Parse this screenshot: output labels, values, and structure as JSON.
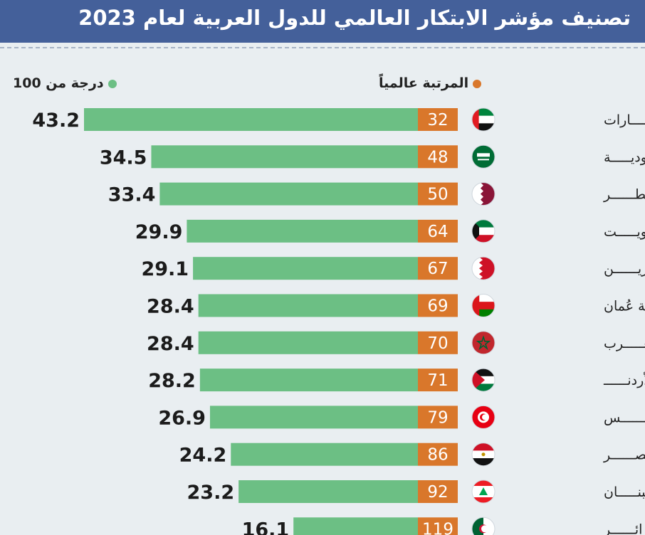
{
  "header": {
    "title": "تصنيف مؤشر الابتكار العالمي للدول العربية لعام 2023"
  },
  "legend": {
    "score_label": "درجة من 100",
    "rank_label": "المرتبة عالمياً"
  },
  "colors": {
    "score_bar": "#6cbf84",
    "rank_box": "#d9772b",
    "header_bg": "#44609a"
  },
  "chart_data": {
    "type": "bar",
    "title": "تصنيف مؤشر الابتكار العالمي للدول العربية لعام 2023",
    "categories": [
      "الإمــــــارات",
      "السعوديـــــة",
      "قـطــــــر",
      "الكويـــــت",
      "البحريــــــن",
      "سلطنة عُمان",
      "المغـــــرب",
      "الأردنــــــ",
      "تونــــــس",
      "مـصــــــر",
      "لبنـــــان",
      "الجزائــــــر"
    ],
    "series": [
      {
        "name": "درجة من 100",
        "values": [
          43.2,
          34.5,
          33.4,
          29.9,
          29.1,
          28.4,
          28.4,
          28.2,
          26.9,
          24.2,
          23.2,
          16.1
        ]
      },
      {
        "name": "المرتبة عالمياً",
        "values": [
          32,
          48,
          50,
          64,
          67,
          69,
          70,
          71,
          79,
          86,
          92,
          119
        ]
      }
    ],
    "flags": [
      "uae-flag-icon",
      "saudi-flag-icon",
      "qatar-flag-icon",
      "kuwait-flag-icon",
      "bahrain-flag-icon",
      "oman-flag-icon",
      "morocco-flag-icon",
      "jordan-flag-icon",
      "tunisia-flag-icon",
      "egypt-flag-icon",
      "lebanon-flag-icon",
      "algeria-flag-icon"
    ],
    "legend_position": "top"
  }
}
